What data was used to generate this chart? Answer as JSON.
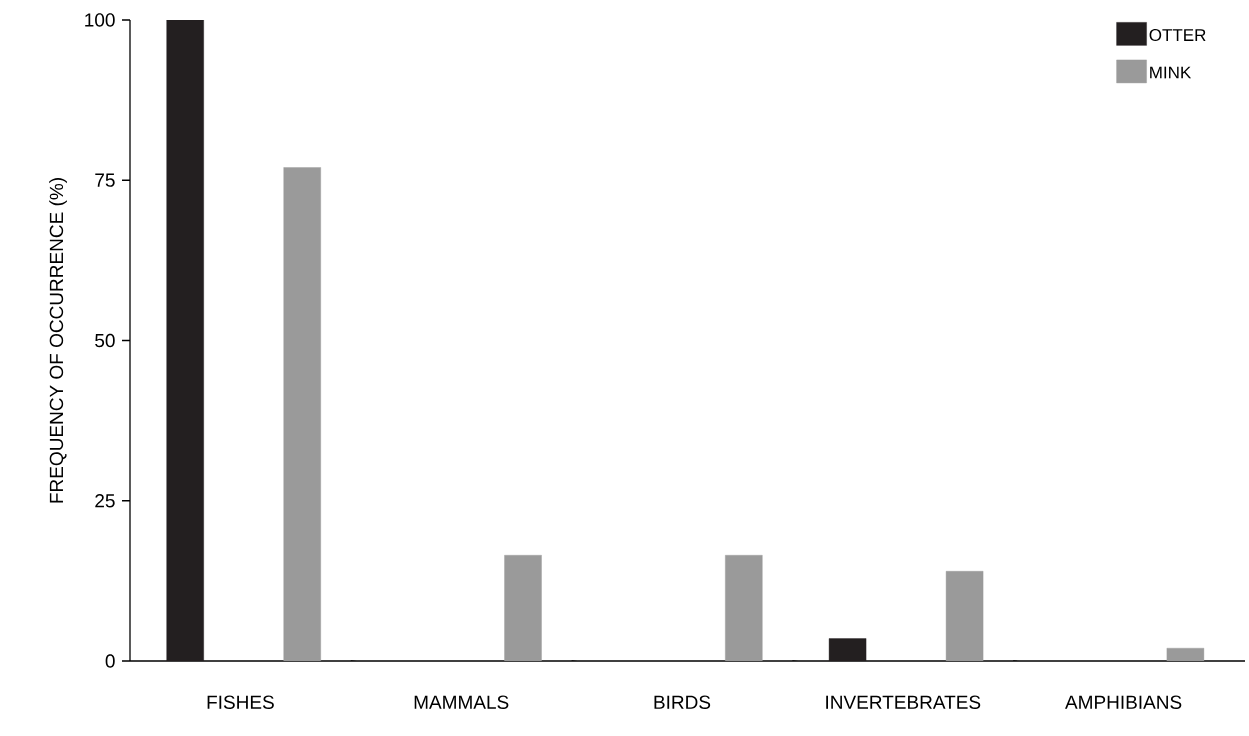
{
  "chart_data": {
    "type": "bar",
    "ylabel": "FREQUENCY OF OCCURRENCE (%)",
    "categories": [
      "FISHES",
      "MAMMALS",
      "BIRDS",
      "INVERTEBRATES",
      "AMPHIBIANS"
    ],
    "series": [
      {
        "name": "OTTER",
        "color": "#231f20",
        "values": [
          100,
          null,
          null,
          3.5,
          null
        ]
      },
      {
        "name": "MINK",
        "color": "#9a9a9a",
        "values": [
          77,
          16.5,
          16.5,
          14,
          2
        ]
      }
    ],
    "ylim": [
      0,
      100
    ],
    "yticks": [
      0,
      25,
      50,
      75,
      100
    ],
    "legend": "top right"
  }
}
